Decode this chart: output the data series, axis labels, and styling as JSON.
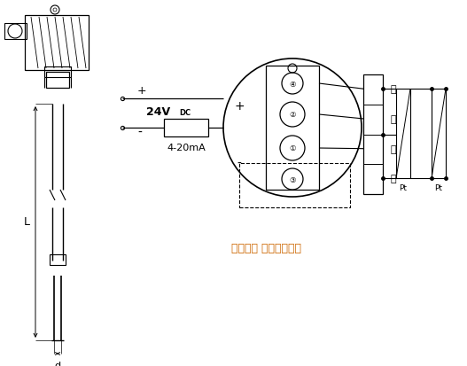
{
  "bg_color": "#ffffff",
  "line_color": "#000000",
  "annotation_color": "#cc6600",
  "label_plus": "+",
  "label_minus": "-",
  "label_24vdc": "24V",
  "label_dc_sub": "DC",
  "label_4_20mA": "4-20mA",
  "label_L": "L",
  "label_d": "d",
  "label_bai1": "白",
  "label_bai2": "白",
  "label_hong1": "红",
  "label_hong2": "红",
  "label_annotation": "热电阱： 三线或四线制",
  "label_Pt1": "Pt",
  "label_Pt2": "Pt"
}
